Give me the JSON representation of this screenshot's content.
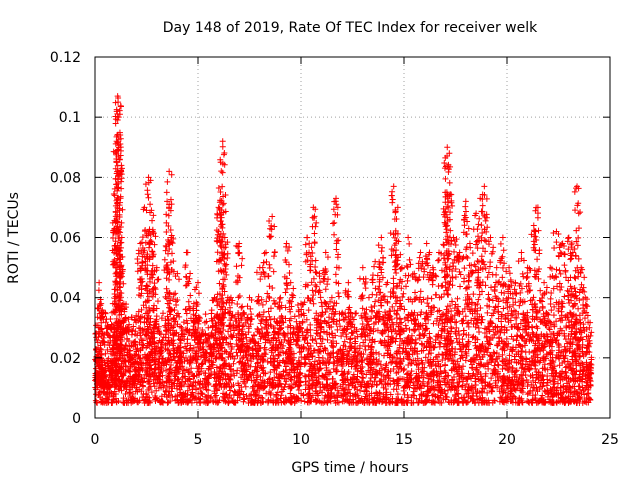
{
  "chart_data": {
    "type": "scatter",
    "title": "Day 148 of 2019, Rate Of TEC Index for receiver welk",
    "xlabel": "GPS time / hours",
    "ylabel": "ROTI / TECUs",
    "xlim": [
      0,
      25
    ],
    "ylim": [
      0,
      0.12
    ],
    "xticks": [
      0,
      5,
      10,
      15,
      20,
      25
    ],
    "xtick_labels": [
      "0",
      "5",
      "10",
      "15",
      "20",
      "25"
    ],
    "yticks": [
      0,
      0.02,
      0.04,
      0.06,
      0.08,
      0.1,
      0.12
    ],
    "ytick_labels": [
      "0",
      "0.02",
      "0.04",
      "0.06",
      "0.08",
      "0.1",
      "0.12"
    ],
    "grid": true,
    "marker": "plus",
    "marker_color": "#ff0000",
    "series": [
      {
        "name": "ROTI",
        "note": "dense point cloud (thousands of samples); representative points listed",
        "points": [
          [
            0.05,
            0.028
          ],
          [
            0.1,
            0.013
          ],
          [
            0.2,
            0.045
          ],
          [
            0.25,
            0.02
          ],
          [
            0.3,
            0.038
          ],
          [
            0.4,
            0.016
          ],
          [
            0.5,
            0.035
          ],
          [
            0.6,
            0.012
          ],
          [
            0.8,
            0.03
          ],
          [
            0.9,
            0.022
          ],
          [
            1.0,
            0.065
          ],
          [
            1.05,
            0.092
          ],
          [
            1.1,
            0.107
          ],
          [
            1.12,
            0.105
          ],
          [
            1.15,
            0.1
          ],
          [
            1.2,
            0.086
          ],
          [
            1.3,
            0.06
          ],
          [
            1.4,
            0.038
          ],
          [
            1.6,
            0.03
          ],
          [
            1.8,
            0.02
          ],
          [
            2.0,
            0.034
          ],
          [
            2.2,
            0.058
          ],
          [
            2.4,
            0.07
          ],
          [
            2.6,
            0.08
          ],
          [
            2.7,
            0.079
          ],
          [
            2.8,
            0.062
          ],
          [
            3.0,
            0.05
          ],
          [
            3.2,
            0.025
          ],
          [
            3.5,
            0.072
          ],
          [
            3.6,
            0.082
          ],
          [
            3.7,
            0.06
          ],
          [
            4.0,
            0.048
          ],
          [
            4.2,
            0.03
          ],
          [
            4.5,
            0.055
          ],
          [
            4.8,
            0.038
          ],
          [
            5.0,
            0.045
          ],
          [
            5.2,
            0.028
          ],
          [
            5.5,
            0.03
          ],
          [
            5.8,
            0.04
          ],
          [
            6.0,
            0.07
          ],
          [
            6.1,
            0.085
          ],
          [
            6.2,
            0.092
          ],
          [
            6.3,
            0.06
          ],
          [
            6.6,
            0.04
          ],
          [
            7.0,
            0.058
          ],
          [
            7.2,
            0.035
          ],
          [
            7.5,
            0.04
          ],
          [
            7.8,
            0.025
          ],
          [
            8.0,
            0.05
          ],
          [
            8.3,
            0.055
          ],
          [
            8.6,
            0.067
          ],
          [
            8.8,
            0.032
          ],
          [
            9.0,
            0.04
          ],
          [
            9.3,
            0.058
          ],
          [
            9.5,
            0.045
          ],
          [
            9.8,
            0.03
          ],
          [
            10.0,
            0.038
          ],
          [
            10.3,
            0.06
          ],
          [
            10.6,
            0.07
          ],
          [
            10.9,
            0.048
          ],
          [
            11.2,
            0.055
          ],
          [
            11.5,
            0.04
          ],
          [
            11.7,
            0.073
          ],
          [
            12.0,
            0.035
          ],
          [
            12.3,
            0.045
          ],
          [
            12.6,
            0.03
          ],
          [
            13.0,
            0.05
          ],
          [
            13.3,
            0.04
          ],
          [
            13.6,
            0.052
          ],
          [
            13.9,
            0.06
          ],
          [
            14.2,
            0.045
          ],
          [
            14.5,
            0.077
          ],
          [
            14.7,
            0.07
          ],
          [
            14.9,
            0.05
          ],
          [
            15.2,
            0.06
          ],
          [
            15.5,
            0.048
          ],
          [
            15.8,
            0.055
          ],
          [
            16.1,
            0.058
          ],
          [
            16.4,
            0.05
          ],
          [
            16.7,
            0.055
          ],
          [
            17.0,
            0.075
          ],
          [
            17.1,
            0.09
          ],
          [
            17.2,
            0.088
          ],
          [
            17.4,
            0.06
          ],
          [
            17.7,
            0.055
          ],
          [
            18.0,
            0.072
          ],
          [
            18.2,
            0.058
          ],
          [
            18.5,
            0.068
          ],
          [
            18.7,
            0.073
          ],
          [
            18.9,
            0.077
          ],
          [
            19.2,
            0.06
          ],
          [
            19.5,
            0.05
          ],
          [
            19.8,
            0.06
          ],
          [
            20.1,
            0.05
          ],
          [
            20.4,
            0.045
          ],
          [
            20.7,
            0.055
          ],
          [
            21.0,
            0.05
          ],
          [
            21.3,
            0.064
          ],
          [
            21.5,
            0.07
          ],
          [
            21.8,
            0.045
          ],
          [
            22.1,
            0.05
          ],
          [
            22.4,
            0.062
          ],
          [
            22.7,
            0.058
          ],
          [
            23.0,
            0.06
          ],
          [
            23.2,
            0.055
          ],
          [
            23.4,
            0.077
          ],
          [
            23.6,
            0.05
          ],
          [
            23.8,
            0.04
          ],
          [
            24.0,
            0.03
          ],
          [
            24.05,
            0.018
          ]
        ]
      }
    ]
  }
}
